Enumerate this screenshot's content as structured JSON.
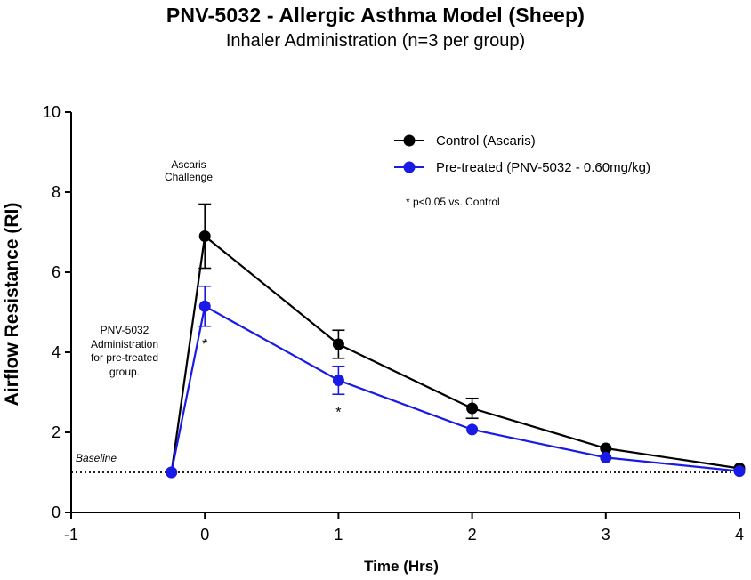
{
  "chart_data": {
    "type": "line",
    "title": "PNV-5032 - Allergic Asthma Model (Sheep)",
    "subtitle": "Inhaler Administration (n=3 per group)",
    "xlabel": "Time (Hrs)",
    "ylabel": "Airflow Resistance (RI)",
    "xlim": [
      -1,
      4
    ],
    "ylim": [
      0,
      10
    ],
    "xticks": [
      -1,
      0,
      1,
      2,
      3,
      4
    ],
    "yticks": [
      0,
      2,
      4,
      6,
      8,
      10
    ],
    "legend_position": "top-right",
    "series": [
      {
        "name": "Control (Ascaris)",
        "color": "#000000",
        "x": [
          -0.25,
          0,
          1,
          2,
          3,
          4
        ],
        "y": [
          1.0,
          6.9,
          4.2,
          2.6,
          1.6,
          1.1
        ],
        "error": [
          0,
          0.8,
          0.35,
          0.25,
          0,
          0
        ]
      },
      {
        "name": "Pre-treated (PNV-5032 - 0.60mg/kg)",
        "color": "#1a1ae6",
        "x": [
          -0.25,
          0,
          1,
          2,
          3,
          4
        ],
        "y": [
          1.0,
          5.15,
          3.3,
          2.07,
          1.37,
          1.03
        ],
        "error": [
          0,
          0.5,
          0.35,
          0,
          0,
          0
        ]
      }
    ],
    "baseline": {
      "y": 1.0,
      "label": "Baseline"
    },
    "significance_note": "* p<0.05 vs. Control",
    "significance_markers": [
      {
        "x": 0,
        "label": "*"
      },
      {
        "x": 1,
        "label": "*"
      }
    ],
    "annotations": {
      "challenge_line1": "Ascaris",
      "challenge_line2": "Challenge",
      "admin_line1": "PNV-5032",
      "admin_line2": "Administration",
      "admin_line3": "for pre-treated",
      "admin_line4": "group."
    }
  }
}
